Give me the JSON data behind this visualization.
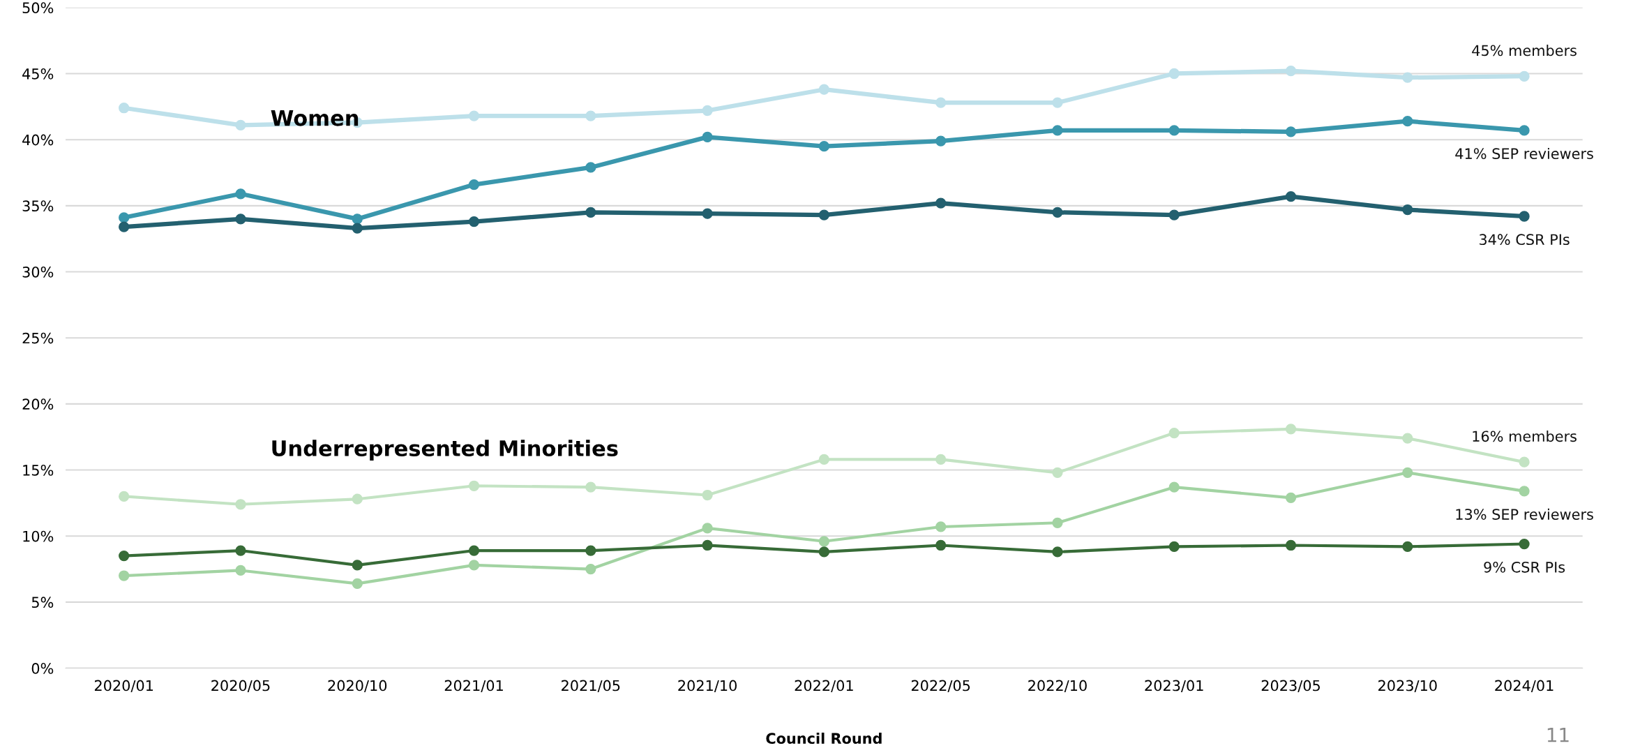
{
  "chart_data": {
    "type": "line",
    "xlabel": "Council Round",
    "categories": [
      "2020/01",
      "2020/05",
      "2020/10",
      "2021/01",
      "2021/05",
      "2021/10",
      "2022/01",
      "2022/05",
      "2022/10",
      "2023/01",
      "2023/05",
      "2023/10",
      "2024/01"
    ],
    "series": [
      {
        "name": "45% members",
        "color": "#bde0ea",
        "values": [
          42.4,
          41.1,
          41.3,
          41.8,
          41.8,
          42.2,
          43.8,
          42.8,
          42.8,
          45.0,
          45.2,
          44.7,
          44.8
        ]
      },
      {
        "name": "41% SEP reviewers",
        "color": "#3a97ad",
        "values": [
          34.1,
          35.9,
          34.0,
          36.6,
          37.9,
          40.2,
          39.5,
          39.9,
          40.7,
          40.7,
          40.6,
          41.4,
          40.7
        ]
      },
      {
        "name": "34% CSR PIs",
        "color": "#23606f",
        "values": [
          33.4,
          34.0,
          33.3,
          33.8,
          34.5,
          34.4,
          34.3,
          35.2,
          34.5,
          34.3,
          35.7,
          34.7,
          34.2
        ]
      },
      {
        "name": "16% members",
        "color": "#c3e3c3",
        "values": [
          13.0,
          12.4,
          12.8,
          13.8,
          13.7,
          13.1,
          15.8,
          15.8,
          14.8,
          17.8,
          18.1,
          17.4,
          15.6
        ]
      },
      {
        "name": "13% SEP reviewers",
        "color": "#a2d3a2",
        "values": [
          7.0,
          7.4,
          6.4,
          7.8,
          7.5,
          10.6,
          9.6,
          10.7,
          11.0,
          13.7,
          12.9,
          14.8,
          13.4
        ]
      },
      {
        "name": "9% CSR PIs",
        "color": "#376b37",
        "values": [
          8.5,
          8.9,
          7.8,
          8.9,
          8.9,
          9.3,
          8.8,
          9.3,
          8.8,
          9.2,
          9.3,
          9.2,
          9.4
        ]
      }
    ],
    "ylim": [
      0,
      50
    ],
    "yticks": [
      {
        "value": 0,
        "label": "0%"
      },
      {
        "value": 5,
        "label": "5%"
      },
      {
        "value": 10,
        "label": "10%"
      },
      {
        "value": 15,
        "label": "15%"
      },
      {
        "value": 20,
        "label": "20%"
      },
      {
        "value": 25,
        "label": "25%"
      },
      {
        "value": 30,
        "label": "30%"
      },
      {
        "value": 35,
        "label": "35%"
      },
      {
        "value": 40,
        "label": "40%"
      },
      {
        "value": 45,
        "label": "45%"
      },
      {
        "value": 50,
        "label": "50%"
      }
    ],
    "grid": "y",
    "marker": "circle",
    "line_style": "solid",
    "legend": false,
    "annotations": [
      "Women",
      "Underrepresented Minorities",
      "11"
    ]
  }
}
